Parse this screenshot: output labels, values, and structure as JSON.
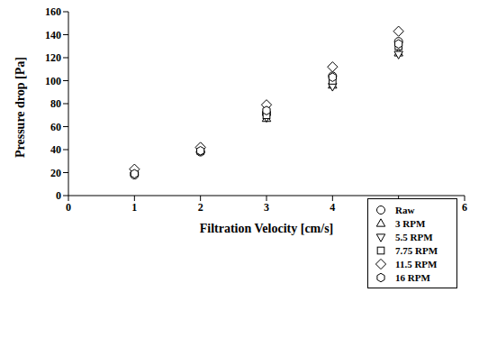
{
  "chart_data": {
    "type": "scatter",
    "x_label": "Filtration Velocity [cm/s]",
    "y_label": "Pressure drop [Pa]",
    "x": [
      1,
      2,
      3,
      4,
      5
    ],
    "series": [
      {
        "name": "Raw",
        "color": "#000000",
        "marker": "circle",
        "values": [
          18,
          38,
          72,
          104,
          134
        ]
      },
      {
        "name": "3 RPM",
        "color": "#000000",
        "marker": "triangle_up",
        "values": [
          22,
          40,
          67,
          96,
          124
        ]
      },
      {
        "name": "5.5 RPM",
        "color": "#000000",
        "marker": "triangle_down",
        "values": [
          21,
          39,
          68,
          95,
          123
        ]
      },
      {
        "name": "7.75 RPM",
        "color": "#000000",
        "marker": "square",
        "values": [
          20,
          39,
          70,
          100,
          130
        ]
      },
      {
        "name": "11.5 RPM",
        "color": "#000000",
        "marker": "diamond",
        "values": [
          23,
          42,
          79,
          112,
          143
        ]
      },
      {
        "name": "16 RPM",
        "color": "#000000",
        "marker": "hexagon",
        "values": [
          19,
          39,
          74,
          103,
          132
        ]
      }
    ],
    "xlim": [
      0,
      6
    ],
    "xticks": [
      0,
      1,
      2,
      3,
      4,
      5,
      6
    ],
    "ylim": [
      0,
      160
    ],
    "yticks": [
      0,
      20,
      40,
      60,
      80,
      100,
      120,
      140,
      160
    ],
    "grid": false,
    "legend": "lower right"
  }
}
